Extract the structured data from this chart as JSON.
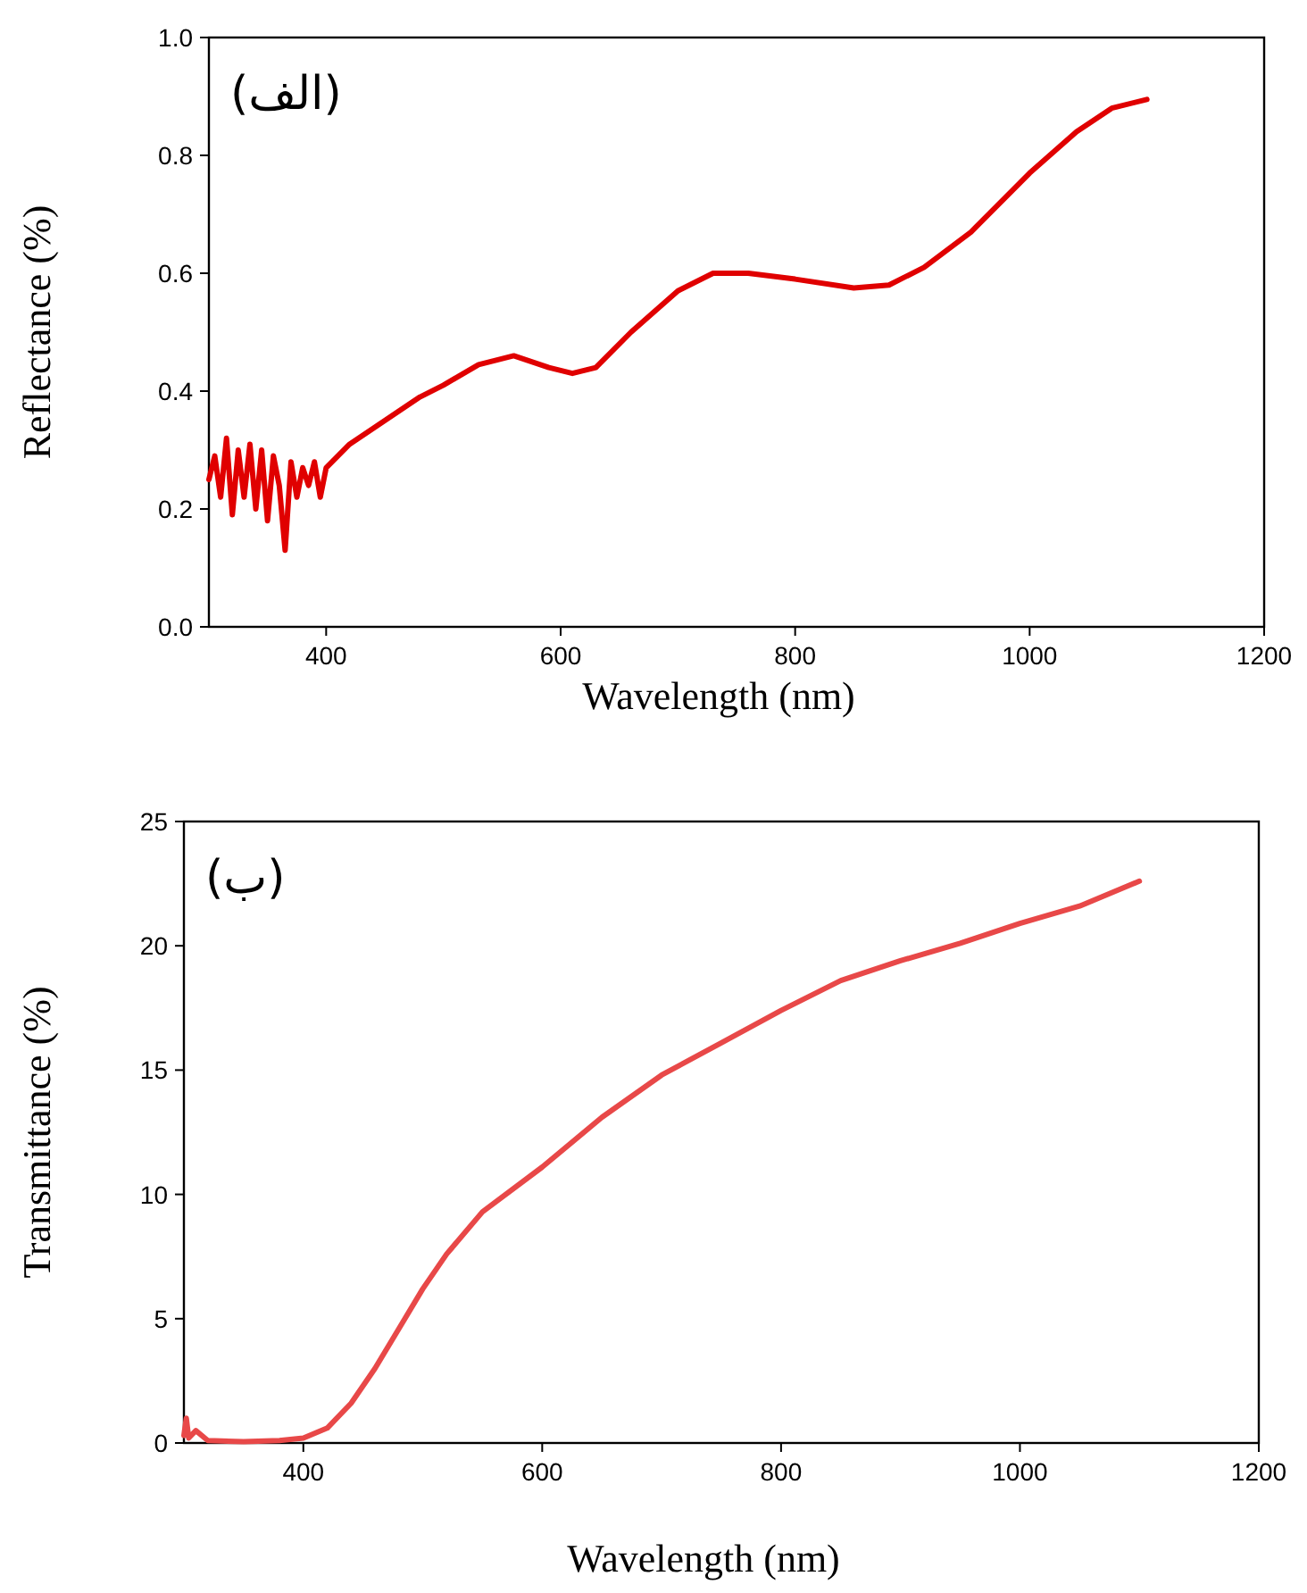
{
  "chart_data": [
    {
      "type": "line",
      "xlabel": "Wavelength (nm)",
      "ylabel": "Reflectance (%)",
      "annotations": [
        "(الف)"
      ],
      "xlim": [
        300,
        1200
      ],
      "ylim": [
        0,
        1.0
      ],
      "xticks": [
        400,
        600,
        800,
        1000,
        1200
      ],
      "yticks": [
        {
          "value": 0,
          "label": "0.0"
        },
        0.2,
        0.4,
        0.6,
        0.8,
        {
          "value": 1,
          "label": "1.0"
        }
      ],
      "x": [
        300,
        305,
        310,
        315,
        320,
        325,
        330,
        335,
        340,
        345,
        350,
        355,
        360,
        365,
        370,
        375,
        380,
        385,
        390,
        395,
        400,
        410,
        420,
        450,
        480,
        500,
        530,
        560,
        590,
        610,
        630,
        660,
        700,
        730,
        760,
        800,
        850,
        880,
        910,
        950,
        1000,
        1040,
        1070,
        1100
      ],
      "series": [
        {
          "color": "#e00000",
          "values": [
            0.25,
            0.29,
            0.22,
            0.32,
            0.19,
            0.3,
            0.22,
            0.31,
            0.2,
            0.3,
            0.18,
            0.29,
            0.24,
            0.13,
            0.28,
            0.22,
            0.27,
            0.24,
            0.28,
            0.22,
            0.27,
            0.29,
            0.31,
            0.35,
            0.39,
            0.41,
            0.445,
            0.46,
            0.44,
            0.43,
            0.44,
            0.5,
            0.57,
            0.6,
            0.6,
            0.59,
            0.575,
            0.58,
            0.61,
            0.67,
            0.77,
            0.84,
            0.88,
            0.895
          ]
        }
      ]
    },
    {
      "type": "line",
      "xlabel": "Wavelength (nm)",
      "ylabel": "Transmittance (%)",
      "annotations": [
        "(ب)"
      ],
      "xlim": [
        300,
        1200
      ],
      "ylim": [
        0,
        25
      ],
      "xticks": [
        400,
        600,
        800,
        1000,
        1200
      ],
      "yticks": [
        0,
        5,
        10,
        15,
        20,
        25
      ],
      "x": [
        300,
        302,
        304,
        310,
        320,
        350,
        380,
        400,
        420,
        440,
        460,
        480,
        500,
        520,
        550,
        600,
        650,
        700,
        750,
        800,
        850,
        900,
        950,
        1000,
        1050,
        1100
      ],
      "series": [
        {
          "color": "#e84848",
          "values": [
            0.3,
            1.0,
            0.2,
            0.5,
            0.1,
            0.05,
            0.1,
            0.2,
            0.6,
            1.6,
            3.0,
            4.6,
            6.2,
            7.6,
            9.3,
            11.1,
            13.1,
            14.8,
            16.1,
            17.4,
            18.6,
            19.4,
            20.1,
            20.9,
            21.6,
            22.6
          ]
        }
      ]
    }
  ]
}
